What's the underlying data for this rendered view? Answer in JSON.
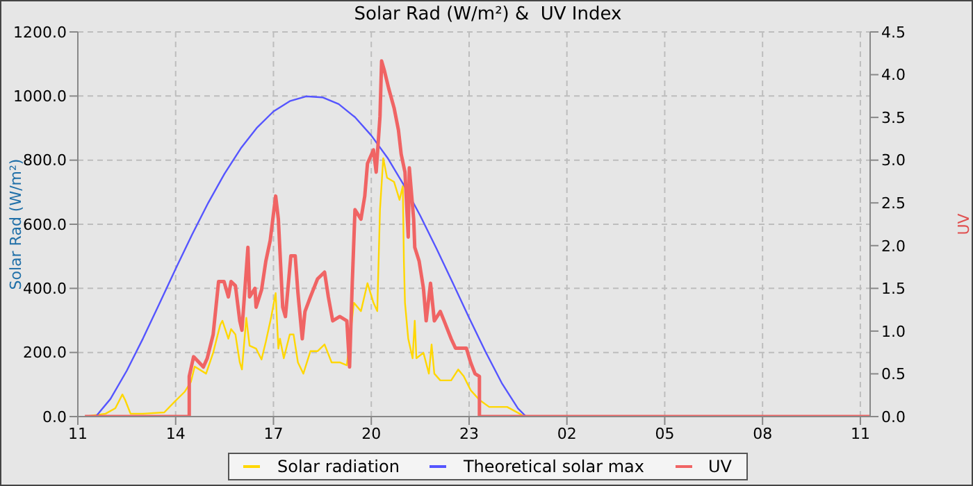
{
  "chart_data": {
    "type": "line",
    "title": "Solar Rad (W/m²) &  UV Index",
    "ylabel": "Solar Rad (W/m²)",
    "y2label": "UV",
    "xlim": [
      "--01-01T11:00",
      "--01-02T11:18"
    ],
    "xticks": [
      {
        "value": "--01-01T11:00",
        "label": "11"
      },
      {
        "value": "--01-01T14:00",
        "label": "14"
      },
      {
        "value": "--01-01T17:00",
        "label": "17"
      },
      {
        "value": "--01-01T20:00",
        "label": "20"
      },
      {
        "value": "--01-01T23:00",
        "label": "23"
      },
      {
        "value": "--01-02T02:00",
        "label": "02"
      },
      {
        "value": "--01-02T05:00",
        "label": "05"
      },
      {
        "value": "--01-02T08:00",
        "label": "08"
      },
      {
        "value": "--01-02T11:00",
        "label": "11"
      }
    ],
    "ylim": [
      0,
      1200
    ],
    "yticks": [
      {
        "value": 0,
        "label": "0.0"
      },
      {
        "value": 200,
        "label": "200.0"
      },
      {
        "value": 400,
        "label": "400.0"
      },
      {
        "value": 600,
        "label": "600.0"
      },
      {
        "value": 800,
        "label": "800.0"
      },
      {
        "value": 1000,
        "label": "1000.0"
      },
      {
        "value": 1200,
        "label": "1200.0"
      }
    ],
    "y2lim": [
      0,
      4.5
    ],
    "y2ticks": [
      {
        "value": 0,
        "label": "0.0"
      },
      {
        "value": 0.5,
        "label": "0.5"
      },
      {
        "value": 1,
        "label": "1.0"
      },
      {
        "value": 1.5,
        "label": "1.5"
      },
      {
        "value": 2,
        "label": "2.0"
      },
      {
        "value": 2.5,
        "label": "2.5"
      },
      {
        "value": 3,
        "label": "3.0"
      },
      {
        "value": 3.5,
        "label": "3.5"
      },
      {
        "value": 4,
        "label": "4.0"
      },
      {
        "value": 4.5,
        "label": "4.5"
      }
    ],
    "grid": true,
    "legend": "bottom",
    "marker": "none",
    "line_style": "solid",
    "series": [
      {
        "name": "Solar radiation",
        "color": "#ffd700",
        "x": [
          "--01-01T11:13",
          "--01-01T11:51",
          "--01-01T12:09",
          "--01-01T12:22",
          "--01-01T12:27",
          "--01-01T12:37",
          "--01-01T13:00",
          "--01-01T13:39",
          "--01-01T13:59",
          "--01-01T14:17",
          "--01-01T14:28",
          "--01-01T14:35",
          "--01-01T14:56",
          "--01-01T15:09",
          "--01-01T15:22",
          "--01-01T15:26",
          "--01-01T15:37",
          "--01-01T15:42",
          "--01-01T15:50",
          "--01-01T15:58",
          "--01-01T16:02",
          "--01-01T16:10",
          "--01-01T16:16",
          "--01-01T16:28",
          "--01-01T16:38",
          "--01-01T16:46",
          "--01-01T16:56",
          "--01-01T17:04",
          "--01-01T17:09",
          "--01-01T17:12",
          "--01-01T17:19",
          "--01-01T17:30",
          "--01-01T17:37",
          "--01-01T17:45",
          "--01-01T17:55",
          "--01-01T18:08",
          "--01-01T18:21",
          "--01-01T18:34",
          "--01-01T18:47",
          "--01-01T19:02",
          "--01-01T19:15",
          "--01-01T19:28",
          "--01-01T19:41",
          "--01-01T19:53",
          "--01-01T20:04",
          "--01-01T20:11",
          "--01-01T20:16",
          "--01-01T20:22",
          "--01-01T20:29",
          "--01-01T20:42",
          "--01-01T20:52",
          "--01-01T20:58",
          "--01-01T21:00",
          "--01-01T21:02",
          "--01-01T21:08",
          "--01-01T21:16",
          "--01-01T21:20",
          "--01-01T21:23",
          "--01-01T21:36",
          "--01-01T21:46",
          "--01-01T21:51",
          "--01-01T21:56",
          "--01-01T22:07",
          "--01-01T22:27",
          "--01-01T22:40",
          "--01-01T22:50",
          "--01-01T23:03",
          "--01-01T23:19",
          "--01-01T23:37",
          "--01-02T00:10",
          "--01-02T00:33",
          "--01-02T00:41",
          "--01-02T11:18"
        ],
        "values": [
          0,
          9,
          26,
          69,
          52,
          9,
          9,
          13,
          48,
          78,
          108,
          156,
          134,
          199,
          286,
          299,
          243,
          273,
          256,
          169,
          147,
          308,
          221,
          212,
          178,
          234,
          312,
          385,
          212,
          243,
          182,
          256,
          256,
          169,
          134,
          204,
          204,
          225,
          169,
          169,
          160,
          355,
          329,
          416,
          355,
          329,
          645,
          806,
          745,
          732,
          676,
          719,
          485,
          355,
          243,
          182,
          299,
          182,
          199,
          134,
          225,
          134,
          113,
          113,
          147,
          126,
          82,
          52,
          30,
          30,
          9,
          0,
          0
        ]
      },
      {
        "name": "Theoretical solar max",
        "color": "#5555ff",
        "x": [
          "--01-01T11:33",
          "--01-01T12:00",
          "--01-01T12:30",
          "--01-01T13:00",
          "--01-01T13:30",
          "--01-01T14:00",
          "--01-01T14:30",
          "--01-01T15:00",
          "--01-01T15:30",
          "--01-01T16:00",
          "--01-01T16:30",
          "--01-01T17:00",
          "--01-01T17:30",
          "--01-01T18:00",
          "--01-01T18:30",
          "--01-01T19:00",
          "--01-01T19:30",
          "--01-01T20:00",
          "--01-01T20:30",
          "--01-01T21:00",
          "--01-01T21:30",
          "--01-01T22:00",
          "--01-01T22:30",
          "--01-01T23:00",
          "--01-01T23:30",
          "--01-02T00:00",
          "--01-02T00:30",
          "--01-02T00:45",
          "--01-02T11:18"
        ],
        "values": [
          0,
          55,
          143,
          244,
          352,
          461,
          567,
          667,
          758,
          837,
          902,
          952,
          984,
          999,
          996,
          975,
          934,
          877,
          807,
          722,
          627,
          524,
          417,
          308,
          203,
          105,
          25,
          0,
          0
        ]
      },
      {
        "name": "UV",
        "color": "#f06464",
        "axis": "y2",
        "x": [
          "--01-01T11:13",
          "--01-01T14:25",
          "--01-01T14:25",
          "--01-01T14:33",
          "--01-01T14:51",
          "--01-01T14:58",
          "--01-01T15:09",
          "--01-01T15:19",
          "--01-01T15:29",
          "--01-01T15:37",
          "--01-01T15:42",
          "--01-01T15:50",
          "--01-01T15:58",
          "--01-01T16:02",
          "--01-01T16:13",
          "--01-01T16:16",
          "--01-01T16:26",
          "--01-01T16:28",
          "--01-01T16:38",
          "--01-01T16:46",
          "--01-01T16:54",
          "--01-01T17:04",
          "--01-01T17:09",
          "--01-01T17:17",
          "--01-01T17:22",
          "--01-01T17:32",
          "--01-01T17:40",
          "--01-01T17:45",
          "--01-01T17:53",
          "--01-01T17:58",
          "--01-01T18:08",
          "--01-01T18:21",
          "--01-01T18:34",
          "--01-01T18:41",
          "--01-01T18:49",
          "--01-01T19:02",
          "--01-01T19:15",
          "--01-01T19:20",
          "--01-01T19:25",
          "--01-01T19:30",
          "--01-01T19:41",
          "--01-01T19:48",
          "--01-01T19:53",
          "--01-01T20:04",
          "--01-01T20:09",
          "--01-01T20:16",
          "--01-01T20:19",
          "--01-01T20:24",
          "--01-01T20:32",
          "--01-01T20:42",
          "--01-01T20:50",
          "--01-01T20:55",
          "--01-01T21:02",
          "--01-01T21:08",
          "--01-01T21:10",
          "--01-01T21:18",
          "--01-01T21:20",
          "--01-01T21:28",
          "--01-01T21:36",
          "--01-01T21:41",
          "--01-01T21:49",
          "--01-01T21:56",
          "--01-01T22:07",
          "--01-01T22:14",
          "--01-01T22:27",
          "--01-01T22:35",
          "--01-01T22:55",
          "--01-01T23:03",
          "--01-01T23:11",
          "--01-01T23:19",
          "--01-01T23:19",
          "--01-02T11:18"
        ],
        "values": [
          0,
          0,
          0.47,
          0.7,
          0.58,
          0.68,
          0.96,
          1.58,
          1.58,
          1.4,
          1.58,
          1.53,
          1.12,
          1.01,
          1.98,
          1.4,
          1.5,
          1.28,
          1.48,
          1.82,
          2.06,
          2.58,
          2.31,
          1.28,
          1.17,
          1.88,
          1.88,
          1.45,
          0.91,
          1.23,
          1.4,
          1.61,
          1.69,
          1.4,
          1.12,
          1.17,
          1.12,
          0.58,
          1.56,
          2.42,
          2.31,
          2.58,
          2.96,
          3.12,
          2.86,
          3.51,
          4.16,
          4.05,
          3.84,
          3.61,
          3.35,
          3.07,
          2.86,
          2.1,
          2.91,
          2.31,
          1.98,
          1.82,
          1.5,
          1.12,
          1.56,
          1.12,
          1.23,
          1.12,
          0.91,
          0.8,
          0.8,
          0.63,
          0.5,
          0.47,
          0,
          0
        ]
      }
    ]
  }
}
